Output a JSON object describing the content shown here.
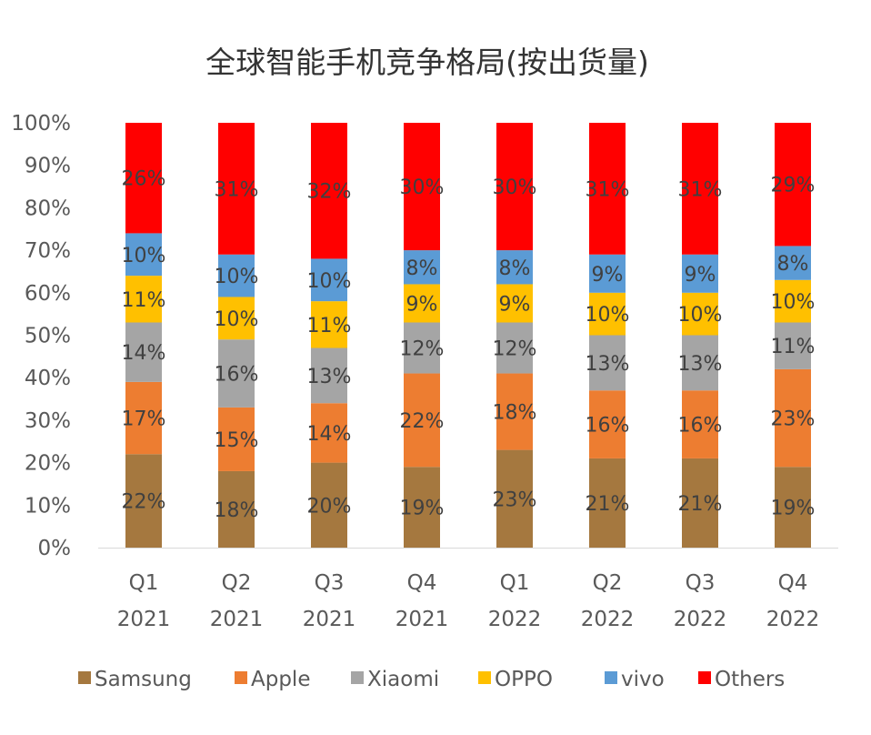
{
  "chart_data": {
    "type": "bar",
    "stacked": true,
    "title": "全球智能手机竞争格局(按出货量)",
    "xlabel": "",
    "ylabel": "",
    "ylim": [
      0,
      100
    ],
    "y_ticks": [
      "0%",
      "10%",
      "20%",
      "30%",
      "40%",
      "50%",
      "60%",
      "70%",
      "80%",
      "90%",
      "100%"
    ],
    "categories": [
      [
        "Q1",
        "2021"
      ],
      [
        "Q2",
        "2021"
      ],
      [
        "Q3",
        "2021"
      ],
      [
        "Q4",
        "2021"
      ],
      [
        "Q1",
        "2022"
      ],
      [
        "Q2",
        "2022"
      ],
      [
        "Q3",
        "2022"
      ],
      [
        "Q4",
        "2022"
      ]
    ],
    "series": [
      {
        "name": "Samsung",
        "color": "#A5783F",
        "values": [
          22,
          18,
          20,
          19,
          23,
          21,
          21,
          19
        ]
      },
      {
        "name": "Apple",
        "color": "#ED7D31",
        "values": [
          17,
          15,
          14,
          22,
          18,
          16,
          16,
          23
        ]
      },
      {
        "name": "Xiaomi",
        "color": "#A5A5A5",
        "values": [
          14,
          16,
          13,
          12,
          12,
          13,
          13,
          11
        ]
      },
      {
        "name": "OPPO",
        "color": "#FFC000",
        "values": [
          11,
          10,
          11,
          9,
          9,
          10,
          10,
          10
        ]
      },
      {
        "name": "vivo",
        "color": "#5B9BD5",
        "values": [
          10,
          10,
          10,
          8,
          8,
          9,
          9,
          8
        ]
      },
      {
        "name": "Others",
        "color": "#FF0000",
        "values": [
          26,
          31,
          32,
          30,
          30,
          31,
          31,
          29
        ]
      }
    ],
    "data_labels": true,
    "value_suffix": "%",
    "grid": false,
    "legend_position": "bottom"
  }
}
